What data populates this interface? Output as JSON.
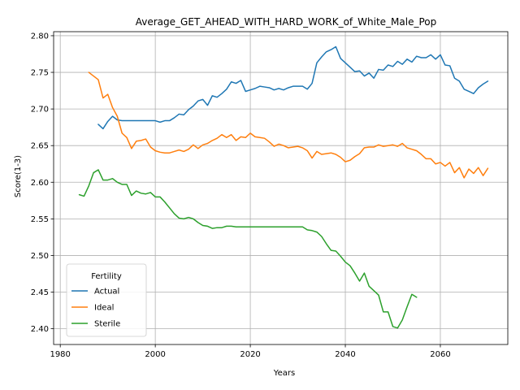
{
  "chart_data": {
    "type": "line",
    "title": "Average_GET_AHEAD_WITH_HARD_WORK_of_White_Male_Pop",
    "xlabel": "Years",
    "ylabel": "Score(1-3)",
    "xlim": [
      1978.6,
      2074.2
    ],
    "ylim": [
      2.3785,
      2.8055
    ],
    "xticks": [
      1980,
      2000,
      2020,
      2040,
      2060
    ],
    "yticks": [
      2.4,
      2.45,
      2.5,
      2.55,
      2.6,
      2.65,
      2.7,
      2.75,
      2.8
    ],
    "grid": true,
    "legend": {
      "title": "Fertility",
      "placement": "lower-left"
    },
    "series": [
      {
        "name": "Actual",
        "color": "#1f77b4",
        "x": [
          1988,
          1989,
          1990,
          1991,
          1992,
          1993,
          1994,
          1995,
          1996,
          1997,
          1998,
          1999,
          2000,
          2001,
          2002,
          2003,
          2004,
          2005,
          2006,
          2007,
          2008,
          2009,
          2010,
          2011,
          2012,
          2013,
          2014,
          2015,
          2016,
          2017,
          2018,
          2019,
          2020,
          2021,
          2022,
          2023,
          2024,
          2025,
          2026,
          2027,
          2028,
          2029,
          2030,
          2031,
          2032,
          2033,
          2034,
          2035,
          2036,
          2037,
          2038,
          2039,
          2040,
          2041,
          2042,
          2043,
          2044,
          2045,
          2046,
          2047,
          2048,
          2049,
          2050,
          2051,
          2052,
          2053,
          2054,
          2055,
          2056,
          2057,
          2058,
          2059,
          2060,
          2061,
          2062,
          2063,
          2064,
          2065,
          2066,
          2067,
          2068,
          2069,
          2070
        ],
        "y": [
          2.679,
          2.673,
          2.683,
          2.69,
          2.685,
          2.684,
          2.684,
          2.684,
          2.684,
          2.684,
          2.684,
          2.684,
          2.684,
          2.682,
          2.684,
          2.684,
          2.688,
          2.693,
          2.692,
          2.699,
          2.704,
          2.711,
          2.713,
          2.705,
          2.718,
          2.716,
          2.721,
          2.727,
          2.737,
          2.735,
          2.739,
          2.724,
          2.726,
          2.728,
          2.731,
          2.73,
          2.729,
          2.726,
          2.728,
          2.726,
          2.729,
          2.731,
          2.731,
          2.731,
          2.727,
          2.735,
          2.763,
          2.771,
          2.778,
          2.781,
          2.785,
          2.769,
          2.763,
          2.757,
          2.751,
          2.752,
          2.745,
          2.749,
          2.742,
          2.754,
          2.753,
          2.76,
          2.758,
          2.765,
          2.761,
          2.768,
          2.764,
          2.772,
          2.77,
          2.77,
          2.774,
          2.768,
          2.774,
          2.76,
          2.759,
          2.742,
          2.738,
          2.727,
          2.724,
          2.721,
          2.729,
          2.734,
          2.738
        ]
      },
      {
        "name": "Ideal",
        "color": "#ff7f0e",
        "x": [
          1986,
          1987,
          1988,
          1989,
          1990,
          1991,
          1992,
          1993,
          1994,
          1995,
          1996,
          1997,
          1998,
          1999,
          2000,
          2001,
          2002,
          2003,
          2004,
          2005,
          2006,
          2007,
          2008,
          2009,
          2010,
          2011,
          2012,
          2013,
          2014,
          2015,
          2016,
          2017,
          2018,
          2019,
          2020,
          2021,
          2022,
          2023,
          2024,
          2025,
          2026,
          2027,
          2028,
          2029,
          2030,
          2031,
          2032,
          2033,
          2034,
          2035,
          2036,
          2037,
          2038,
          2039,
          2040,
          2041,
          2042,
          2043,
          2044,
          2045,
          2046,
          2047,
          2048,
          2049,
          2050,
          2051,
          2052,
          2053,
          2054,
          2055,
          2056,
          2057,
          2058,
          2059,
          2060,
          2061,
          2062,
          2063,
          2064,
          2065,
          2066,
          2067,
          2068,
          2069,
          2070
        ],
        "y": [
          2.75,
          2.745,
          2.74,
          2.715,
          2.72,
          2.702,
          2.69,
          2.667,
          2.661,
          2.646,
          2.656,
          2.657,
          2.659,
          2.648,
          2.643,
          2.641,
          2.64,
          2.64,
          2.642,
          2.644,
          2.642,
          2.645,
          2.651,
          2.646,
          2.651,
          2.653,
          2.657,
          2.66,
          2.665,
          2.661,
          2.665,
          2.657,
          2.662,
          2.661,
          2.667,
          2.662,
          2.661,
          2.66,
          2.655,
          2.649,
          2.652,
          2.65,
          2.647,
          2.648,
          2.649,
          2.647,
          2.643,
          2.633,
          2.642,
          2.638,
          2.639,
          2.64,
          2.638,
          2.634,
          2.628,
          2.63,
          2.635,
          2.639,
          2.647,
          2.648,
          2.648,
          2.651,
          2.649,
          2.65,
          2.651,
          2.649,
          2.653,
          2.647,
          2.645,
          2.643,
          2.638,
          2.632,
          2.632,
          2.625,
          2.627,
          2.622,
          2.627,
          2.613,
          2.62,
          2.606,
          2.618,
          2.612,
          2.62,
          2.609,
          2.619
        ]
      },
      {
        "name": "Sterile",
        "color": "#2ca02c",
        "x": [
          1984,
          1985,
          1986,
          1987,
          1988,
          1989,
          1990,
          1991,
          1992,
          1993,
          1994,
          1995,
          1996,
          1997,
          1998,
          1999,
          2000,
          2001,
          2002,
          2003,
          2004,
          2005,
          2006,
          2007,
          2008,
          2009,
          2010,
          2011,
          2012,
          2013,
          2014,
          2015,
          2016,
          2017,
          2018,
          2019,
          2020,
          2021,
          2022,
          2023,
          2024,
          2025,
          2026,
          2027,
          2028,
          2029,
          2030,
          2031,
          2032,
          2033,
          2034,
          2035,
          2036,
          2037,
          2038,
          2039,
          2040,
          2041,
          2042,
          2043,
          2044,
          2045,
          2046,
          2047,
          2048,
          2049,
          2050,
          2051,
          2052,
          2053,
          2054,
          2055
        ],
        "y": [
          2.583,
          2.581,
          2.595,
          2.613,
          2.617,
          2.603,
          2.603,
          2.605,
          2.6,
          2.597,
          2.597,
          2.582,
          2.588,
          2.585,
          2.584,
          2.586,
          2.58,
          2.58,
          2.573,
          2.565,
          2.557,
          2.551,
          2.55,
          2.552,
          2.55,
          2.545,
          2.541,
          2.54,
          2.537,
          2.538,
          2.538,
          2.54,
          2.54,
          2.539,
          2.539,
          2.539,
          2.539,
          2.539,
          2.539,
          2.539,
          2.539,
          2.539,
          2.539,
          2.539,
          2.539,
          2.539,
          2.539,
          2.539,
          2.535,
          2.534,
          2.532,
          2.526,
          2.516,
          2.507,
          2.506,
          2.499,
          2.491,
          2.486,
          2.476,
          2.465,
          2.476,
          2.458,
          2.452,
          2.446,
          2.423,
          2.423,
          2.403,
          2.401,
          2.412,
          2.43,
          2.447,
          2.443
        ]
      }
    ]
  }
}
